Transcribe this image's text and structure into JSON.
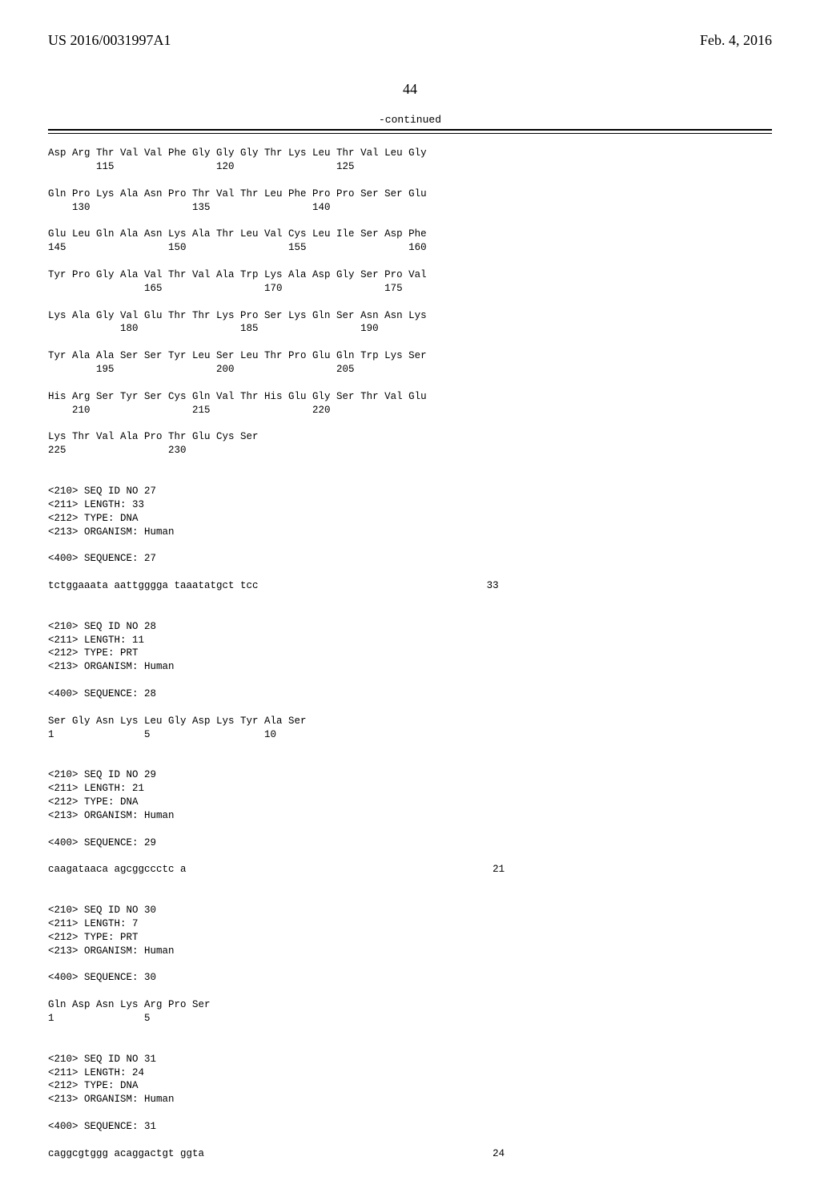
{
  "header": {
    "left": "US 2016/0031997A1",
    "right": "Feb. 4, 2016"
  },
  "page_number": "44",
  "continued": "-continued",
  "rows": [
    "Asp Arg Thr Val Val Phe Gly Gly Gly Thr Lys Leu Thr Val Leu Gly",
    "        115                 120                 125",
    "",
    "Gln Pro Lys Ala Asn Pro Thr Val Thr Leu Phe Pro Pro Ser Ser Glu",
    "    130                 135                 140",
    "",
    "Glu Leu Gln Ala Asn Lys Ala Thr Leu Val Cys Leu Ile Ser Asp Phe",
    "145                 150                 155                 160",
    "",
    "Tyr Pro Gly Ala Val Thr Val Ala Trp Lys Ala Asp Gly Ser Pro Val",
    "                165                 170                 175",
    "",
    "Lys Ala Gly Val Glu Thr Thr Lys Pro Ser Lys Gln Ser Asn Asn Lys",
    "            180                 185                 190",
    "",
    "Tyr Ala Ala Ser Ser Tyr Leu Ser Leu Thr Pro Glu Gln Trp Lys Ser",
    "        195                 200                 205",
    "",
    "His Arg Ser Tyr Ser Cys Gln Val Thr His Glu Gly Ser Thr Val Glu",
    "    210                 215                 220",
    "",
    "Lys Thr Val Ala Pro Thr Glu Cys Ser",
    "225                 230",
    "",
    "",
    "<210> SEQ ID NO 27",
    "<211> LENGTH: 33",
    "<212> TYPE: DNA",
    "<213> ORGANISM: Human",
    "",
    "<400> SEQUENCE: 27",
    "",
    "tctggaaata aattgggga taaatatgct tcc                                      33",
    "",
    "",
    "<210> SEQ ID NO 28",
    "<211> LENGTH: 11",
    "<212> TYPE: PRT",
    "<213> ORGANISM: Human",
    "",
    "<400> SEQUENCE: 28",
    "",
    "Ser Gly Asn Lys Leu Gly Asp Lys Tyr Ala Ser",
    "1               5                   10",
    "",
    "",
    "<210> SEQ ID NO 29",
    "<211> LENGTH: 21",
    "<212> TYPE: DNA",
    "<213> ORGANISM: Human",
    "",
    "<400> SEQUENCE: 29",
    "",
    "caagataaca agcggccctc a                                                   21",
    "",
    "",
    "<210> SEQ ID NO 30",
    "<211> LENGTH: 7",
    "<212> TYPE: PRT",
    "<213> ORGANISM: Human",
    "",
    "<400> SEQUENCE: 30",
    "",
    "Gln Asp Asn Lys Arg Pro Ser",
    "1               5",
    "",
    "",
    "<210> SEQ ID NO 31",
    "<211> LENGTH: 24",
    "<212> TYPE: DNA",
    "<213> ORGANISM: Human",
    "",
    "<400> SEQUENCE: 31",
    "",
    "caggcgtggg acaggactgt ggta                                                24"
  ]
}
